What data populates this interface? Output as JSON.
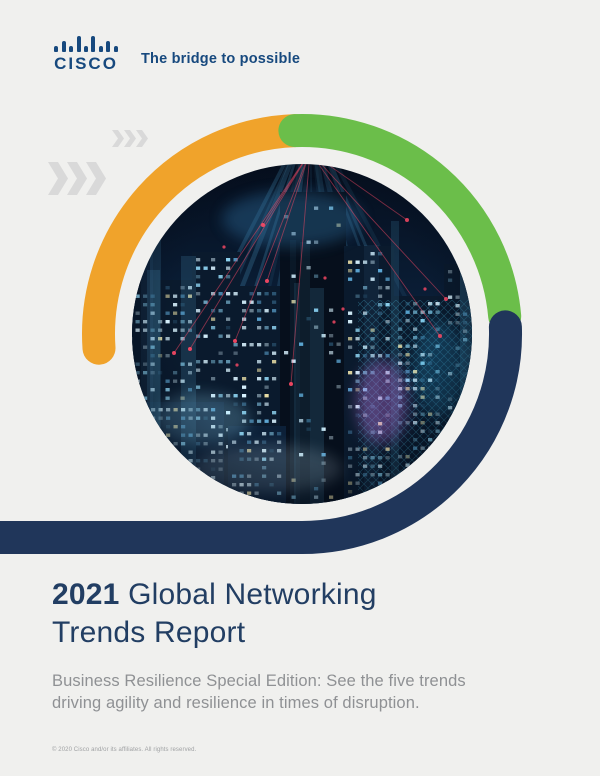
{
  "brand": {
    "logo_text": "CISCO",
    "tagline": "The bridge to possible"
  },
  "title": {
    "year": "2021",
    "line1_rest": " Global Networking",
    "line2": "Trends Report"
  },
  "subtitle": {
    "line1": "Business Resilience Special Edition: See the five trends",
    "line2": "driving agility and resilience in times of disruption."
  },
  "footer": {
    "copyright": "© 2020 Cisco and/or its affiliates. All rights reserved."
  },
  "colors": {
    "background": "#f0f0ee",
    "brand_navy": "#17497e",
    "title_navy": "#223e63",
    "ring_orange": "#f0a32b",
    "ring_green": "#6bbe4a",
    "ring_navy": "#20365a",
    "chevron_gray": "#d9d9d9",
    "subtitle_gray": "#8f9194",
    "copyright_gray": "#9fa1a3"
  },
  "city_palette": {
    "sky_top": "#050e1d",
    "sky_mid": "#0c2440",
    "sky_bottom": "#123050",
    "building_dark": "#0a1a2d",
    "building_center": "#060f1c",
    "building_front": "#0c2038",
    "window_bright": "#d9f3ff",
    "window_cyan": "#8fd4f2",
    "window_blue": "#5ea8d6",
    "window_warm": "#eadfa6",
    "window_dim": "#2d5876",
    "streak": "#58acd8",
    "mesh": "#49b6d8",
    "red": "#ff4a66",
    "magenta": "#b06ad0"
  }
}
